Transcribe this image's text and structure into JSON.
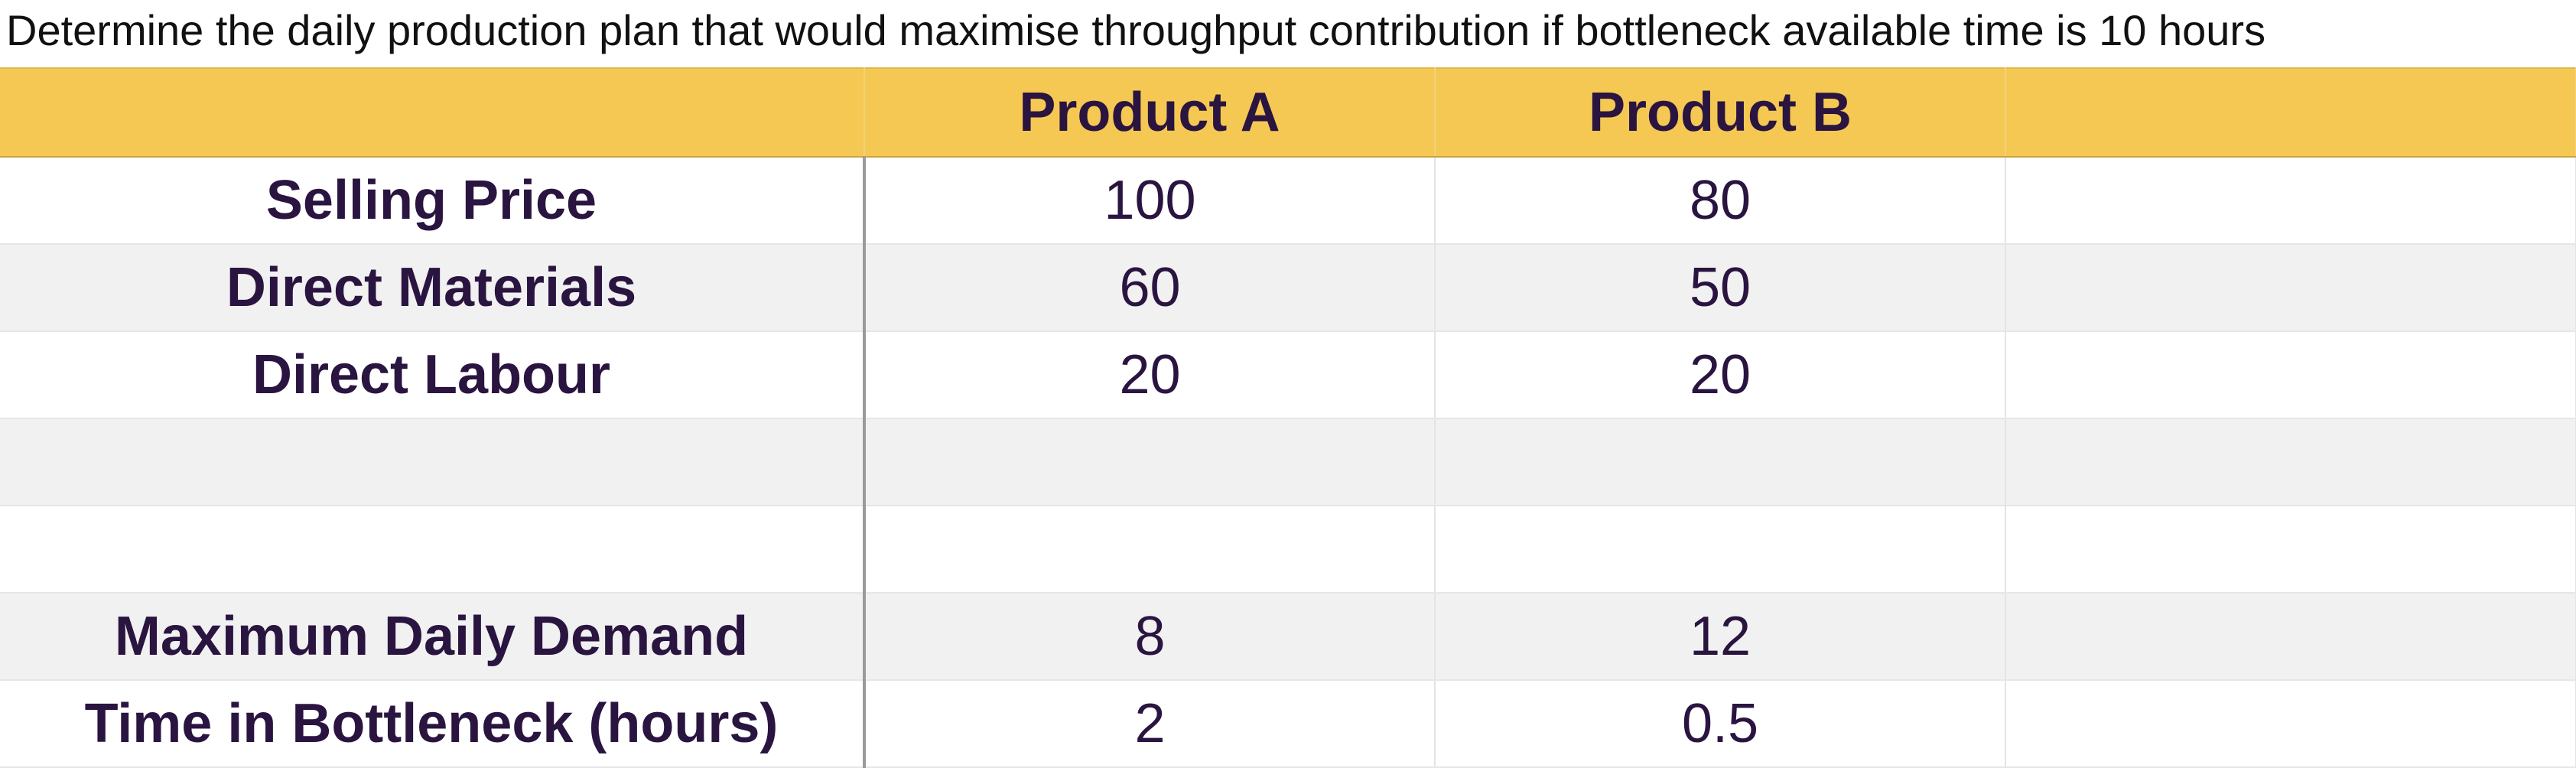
{
  "question": "Determine the daily production plan that would maximise throughput contribution if bottleneck available time is 10 hours",
  "table": {
    "headers": [
      "",
      "Product A",
      "Product B",
      ""
    ],
    "rows": [
      {
        "label": "Selling Price",
        "a": "100",
        "b": "80",
        "extra": ""
      },
      {
        "label": "Direct Materials",
        "a": "60",
        "b": "50",
        "extra": ""
      },
      {
        "label": "Direct Labour",
        "a": "20",
        "b": "20",
        "extra": ""
      },
      {
        "label": "",
        "a": "",
        "b": "",
        "extra": ""
      },
      {
        "label": "",
        "a": "",
        "b": "",
        "extra": ""
      },
      {
        "label": "Maximum Daily Demand",
        "a": "8",
        "b": "12",
        "extra": ""
      },
      {
        "label": "Time in Bottleneck (hours)",
        "a": "2",
        "b": "0.5",
        "extra": ""
      }
    ]
  },
  "colors": {
    "header_fill": "#f5c853",
    "text": "#2a1440",
    "alt_row": "#f1f1f1"
  }
}
